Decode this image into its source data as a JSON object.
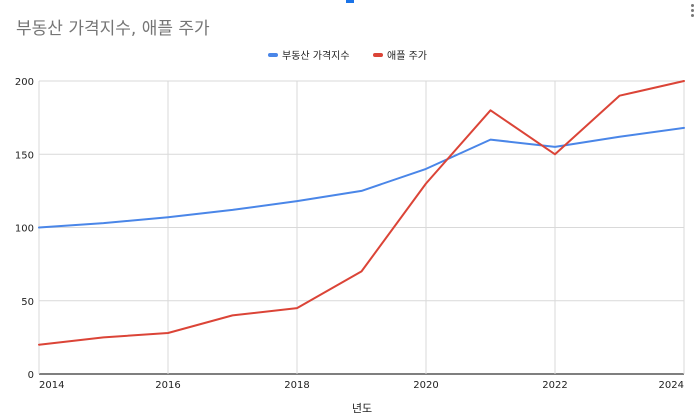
{
  "chart_data": {
    "type": "line",
    "title": "부동산 가격지수, 애플 주가",
    "xlabel": "년도",
    "ylabel": "",
    "x": [
      2014,
      2015,
      2016,
      2017,
      2018,
      2019,
      2020,
      2021,
      2022,
      2023,
      2024
    ],
    "xticks": [
      2014,
      2016,
      2018,
      2020,
      2022,
      2024
    ],
    "yticks": [
      0,
      50,
      100,
      150,
      200
    ],
    "xlim": [
      2014,
      2024
    ],
    "ylim": [
      0,
      200
    ],
    "grid": true,
    "legend_position": "top",
    "series": [
      {
        "name": "부동산 가격지수",
        "color": "#4a86e8",
        "values": [
          100,
          103,
          107,
          112,
          118,
          125,
          140,
          160,
          155,
          162,
          168
        ]
      },
      {
        "name": "애플 주가",
        "color": "#db4437",
        "values": [
          20,
          25,
          28,
          40,
          45,
          70,
          130,
          180,
          150,
          190,
          200
        ]
      }
    ]
  }
}
